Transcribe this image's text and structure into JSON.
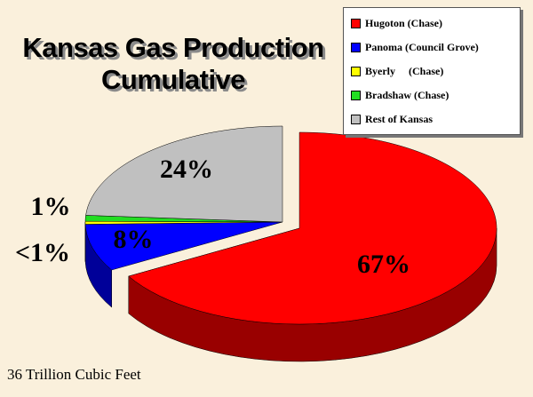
{
  "chart_data": {
    "type": "pie",
    "title": "Kansas Gas Production Cumulative",
    "annotation": "36 Trillion Cubic Feet",
    "categories": [
      "Hugoton (Chase)",
      "Panoma (Council Grove)",
      "Byerly     (Chase)",
      "Bradshaw (Chase)",
      "Rest of Kansas"
    ],
    "values": [
      67,
      8,
      0.5,
      1,
      24
    ],
    "value_labels": [
      "67%",
      "8%",
      "<1%",
      "1%",
      "24%"
    ],
    "colors": [
      "#ff0000",
      "#0000ff",
      "#ffff00",
      "#22dd22",
      "#c0c0c0"
    ]
  }
}
